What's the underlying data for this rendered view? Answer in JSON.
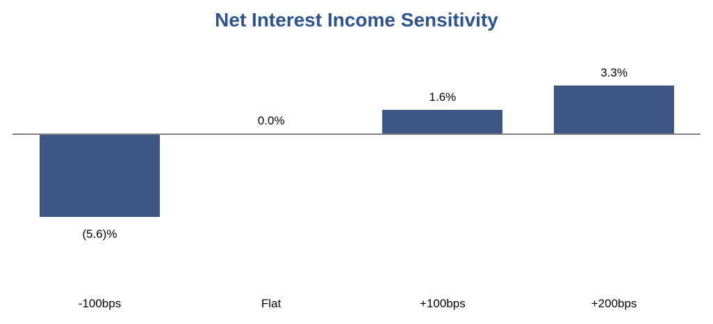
{
  "chart_data": {
    "type": "bar",
    "title": "Net Interest Income Sensitivity",
    "categories": [
      "-100bps",
      "Flat",
      "+100bps",
      "+200bps"
    ],
    "values": [
      -5.6,
      0.0,
      1.6,
      3.3
    ],
    "value_labels": [
      "(5.6)%",
      "0.0%",
      "1.6%",
      "3.3%"
    ],
    "xlabel": "",
    "ylabel": "",
    "ylim": [
      -6.5,
      4.5
    ],
    "grid": false,
    "legend": "none",
    "colors": {
      "bar_fill": "#3E5684",
      "title_text": "#2E5490",
      "axis_line": "#7F7F7F",
      "label_text": "#000000",
      "background": "#FFFFFF"
    }
  }
}
